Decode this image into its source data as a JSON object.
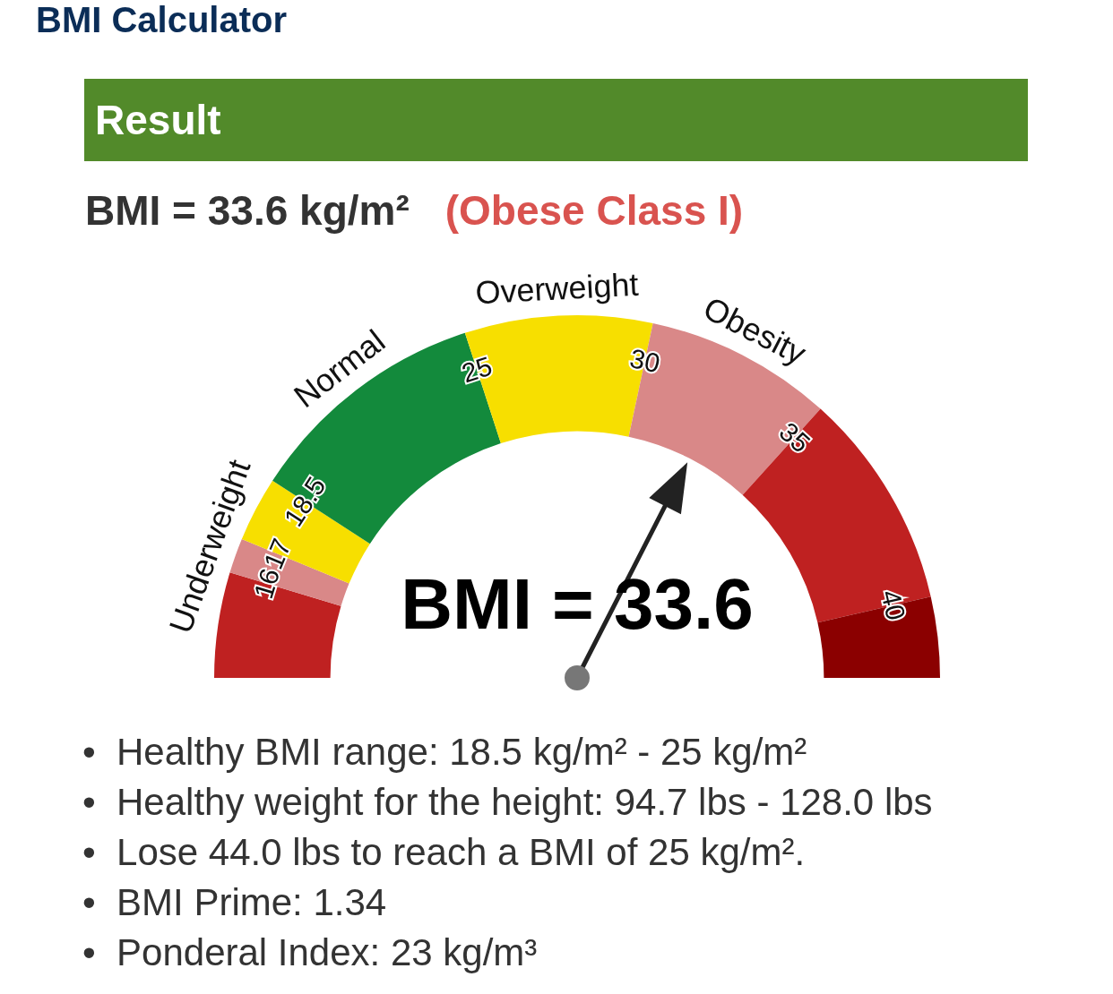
{
  "chart_data": {
    "type": "donut",
    "title": "BMI Calculator",
    "subtitle": "Result",
    "categories": [
      null,
      "Underweight",
      null,
      "Normal",
      "Overweight",
      "Obesity",
      null,
      null
    ],
    "values": [
      9.4,
      3.1,
      5.8,
      21.7,
      16.7,
      16.7,
      19.4,
      7.2
    ],
    "colors": [
      "#bf2121",
      "#d98888",
      "#f7df00",
      "#138a3c",
      "#f7df00",
      "#d98888",
      "#bf2121",
      "#8b0000"
    ],
    "needle": "Obesity",
    "annotations": [
      "16",
      "17",
      "18.5",
      "25",
      "30",
      "35",
      "40",
      "BMI = 33.6",
      "BMI = 33.6 kg/m²",
      "(Obese Class I)",
      "•  Healthy BMI range: 18.5 kg/m² - 25 kg/m²",
      "•  Healthy weight for the height: 94.7 lbs - 128.0 lbs",
      "•  Lose 44.0 lbs to reach a BMI of 25 kg/m².",
      "•  BMI Prime: 1.34",
      "•  Ponderal Index: 23 kg/m³"
    ],
    "legend": false
  }
}
